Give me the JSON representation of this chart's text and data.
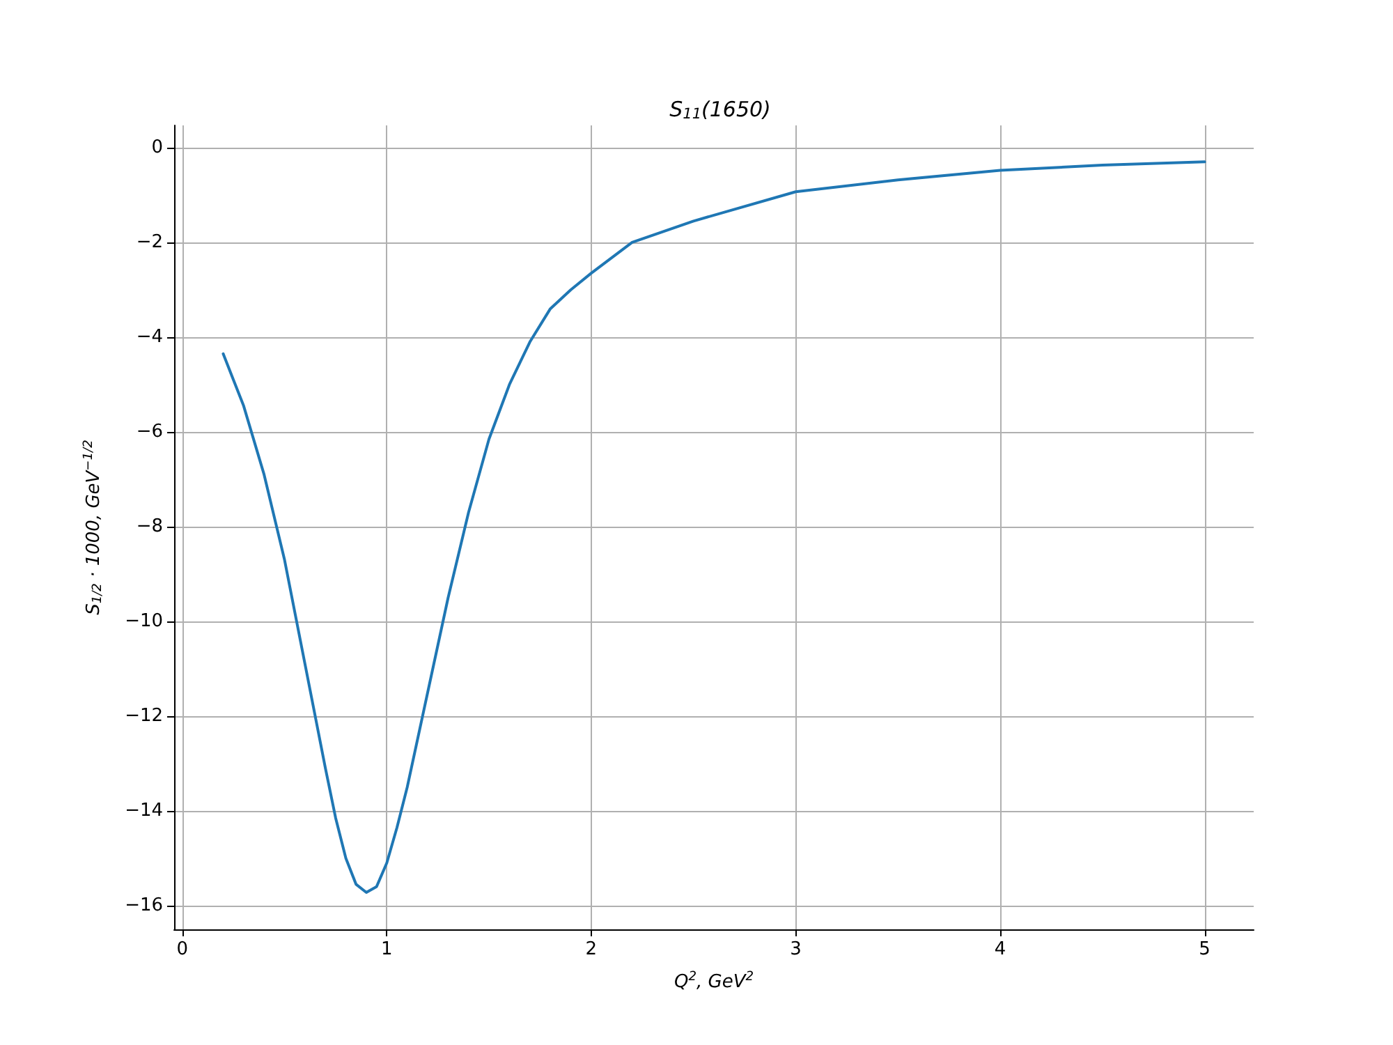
{
  "chart_data": {
    "type": "line",
    "title": "S$_{11}$(1650)",
    "xlabel": "Q$^{2}$, GeV$^{2}$",
    "ylabel": "S$_{1/2}$ · 1000, GeV$^{−1/2}$",
    "series": [
      {
        "color": "#1f77b4",
        "x": [
          0.2,
          0.25,
          0.3,
          0.4,
          0.5,
          0.6,
          0.7,
          0.75,
          0.8,
          0.85,
          0.9,
          0.95,
          1.0,
          1.05,
          1.1,
          1.2,
          1.3,
          1.4,
          1.5,
          1.6,
          1.7,
          1.8,
          1.9,
          2.0,
          2.2,
          2.5,
          3.0,
          3.5,
          4.0,
          4.5,
          5.0
        ],
        "values": [
          -4.35,
          -4.9,
          -5.45,
          -6.9,
          -8.7,
          -10.9,
          -13.1,
          -14.15,
          -15.0,
          -15.55,
          -15.72,
          -15.6,
          -15.1,
          -14.35,
          -13.5,
          -11.5,
          -9.5,
          -7.7,
          -6.15,
          -5.0,
          -4.1,
          -3.4,
          -3.0,
          -2.65,
          -2.0,
          -1.55,
          -0.93,
          -0.68,
          -0.48,
          -0.37,
          -0.3
        ]
      }
    ],
    "xlim": [
      -0.04,
      5.24
    ],
    "xticks": [
      0,
      1,
      2,
      3,
      4,
      5
    ],
    "ylim": [
      -16.5,
      0.47
    ],
    "yticks": [
      -16,
      -14,
      -12,
      -10,
      -8,
      -6,
      -4,
      -2,
      0
    ],
    "grid": true,
    "marker": "none",
    "line_style": "solid"
  }
}
